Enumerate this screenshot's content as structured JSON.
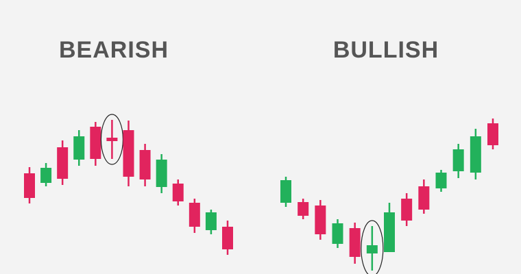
{
  "chart_data": [
    {
      "type": "candlestick",
      "title": "BEARISH",
      "open": [
        147,
        133,
        185,
        167,
        215,
        199,
        210,
        181,
        127,
        132,
        104,
        64,
        69
      ],
      "close": [
        111,
        155,
        139,
        201,
        168,
        194,
        142,
        138,
        167,
        106,
        69,
        90,
        36
      ],
      "high": [
        156,
        162,
        195,
        210,
        222,
        225,
        224,
        190,
        175,
        138,
        110,
        94,
        78
      ],
      "low": [
        103,
        128,
        130,
        158,
        158,
        168,
        128,
        128,
        118,
        100,
        60,
        58,
        28
      ],
      "ylim": [
        0,
        400
      ],
      "highlight": 5,
      "up_color": "#22b15b",
      "down_color": "#e1245e"
    },
    {
      "type": "candlestick",
      "title": "BULLISH",
      "open": [
        104,
        105,
        100,
        44,
        67,
        30,
        32,
        110,
        128,
        125,
        150,
        148,
        220
      ],
      "close": [
        137,
        85,
        58,
        74,
        25,
        42,
        90,
        78,
        94,
        148,
        182,
        201,
        188
      ],
      "high": [
        142,
        110,
        108,
        80,
        75,
        70,
        104,
        118,
        138,
        152,
        190,
        212,
        227
      ],
      "low": [
        98,
        80,
        50,
        38,
        15,
        5,
        32,
        70,
        88,
        120,
        140,
        138,
        182
      ],
      "ylim": [
        0,
        400
      ],
      "highlight": 5,
      "up_color": "#22b15b",
      "down_color": "#e1245e"
    }
  ]
}
